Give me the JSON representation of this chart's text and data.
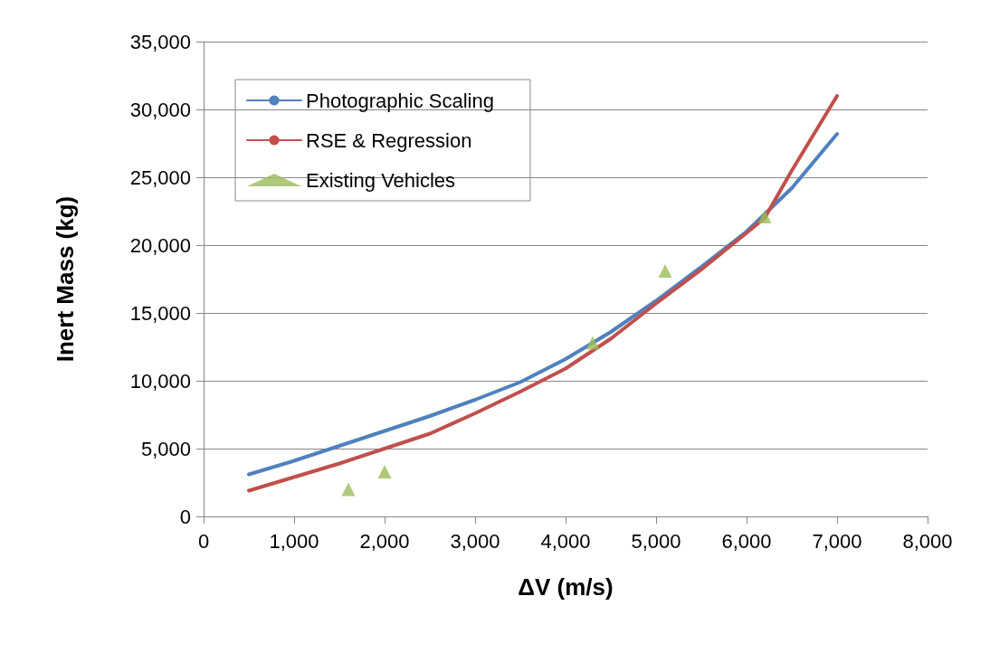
{
  "chart_data": {
    "type": "line",
    "xlabel": "ΔV (m/s)",
    "ylabel": "Inert Mass (kg)",
    "xlim": [
      0,
      8000
    ],
    "xticks": [
      0,
      {
        "value": 1000,
        "label": "1,000"
      },
      {
        "value": 2000,
        "label": "2,000"
      },
      {
        "value": 3000,
        "label": "3,000"
      },
      {
        "value": 4000,
        "label": "4,000"
      },
      {
        "value": 5000,
        "label": "5,000"
      },
      {
        "value": 6000,
        "label": "6,000"
      },
      {
        "value": 7000,
        "label": "7,000"
      },
      {
        "value": 8000,
        "label": "8,000"
      }
    ],
    "ylim": [
      0,
      35000
    ],
    "yticks": [
      0,
      {
        "value": 5000,
        "label": "5,000"
      },
      {
        "value": 10000,
        "label": "10,000"
      },
      {
        "value": 15000,
        "label": "15,000"
      },
      {
        "value": 20000,
        "label": "20,000"
      },
      {
        "value": 25000,
        "label": "25,000"
      },
      {
        "value": 30000,
        "label": "30,000"
      },
      {
        "value": 35000,
        "label": "35,000"
      }
    ],
    "grid": "y",
    "legend": "top left",
    "series": [
      {
        "name": "Photographic Scaling",
        "color": "#4f81bd",
        "marker": "none",
        "x": [
          500,
          1000,
          1500,
          2000,
          2500,
          3000,
          3500,
          4000,
          4500,
          5000,
          5500,
          6000,
          6500,
          7000
        ],
        "values": [
          3100,
          4100,
          5200,
          6300,
          7400,
          8600,
          9900,
          11600,
          13600,
          15900,
          18400,
          21000,
          24200,
          28200
        ]
      },
      {
        "name": "RSE & Regression",
        "color": "#c0504d",
        "marker": "none",
        "x": [
          500,
          1000,
          1500,
          2000,
          2500,
          3000,
          3500,
          4000,
          4500,
          5000,
          5500,
          6000,
          6200,
          6500,
          7000
        ],
        "values": [
          1900,
          2900,
          3900,
          5000,
          6100,
          7600,
          9200,
          10900,
          13100,
          15700,
          18200,
          20900,
          22000,
          25500,
          31000
        ]
      },
      {
        "name": "Existing Vehicles",
        "color": "#9bbb59",
        "type": "scatter",
        "marker": "triangle",
        "x": [
          1600,
          2000,
          4300,
          5100,
          6200
        ],
        "values": [
          2000,
          3300,
          12800,
          18100,
          22100
        ]
      }
    ]
  }
}
